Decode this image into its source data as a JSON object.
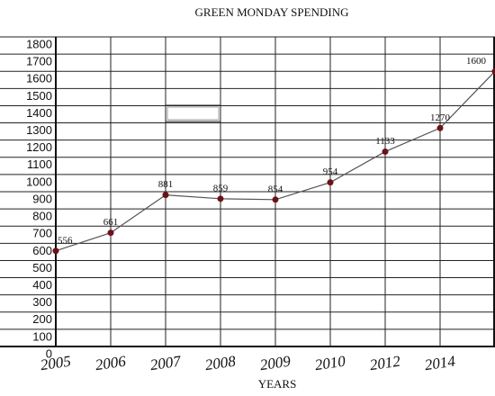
{
  "chart_data": {
    "type": "line",
    "title": "GREEN MONDAY SPENDING",
    "x_label": "YEARS",
    "categories": [
      "2005",
      "2006",
      "2007",
      "2008",
      "2009",
      "2010",
      "2012",
      "2014",
      null
    ],
    "series": [
      {
        "name": "Spending",
        "color": "#6b1218",
        "line_color": "#555555",
        "values": [
          556,
          661,
          881,
          859,
          854,
          954,
          1133,
          1270,
          1600
        ]
      }
    ],
    "ylim": [
      0,
      1800
    ],
    "yticks": [
      0,
      100,
      200,
      300,
      400,
      500,
      600,
      700,
      800,
      900,
      1000,
      1100,
      1200,
      1300,
      1400,
      1500,
      1600,
      1700,
      1800
    ],
    "grid": true
  }
}
